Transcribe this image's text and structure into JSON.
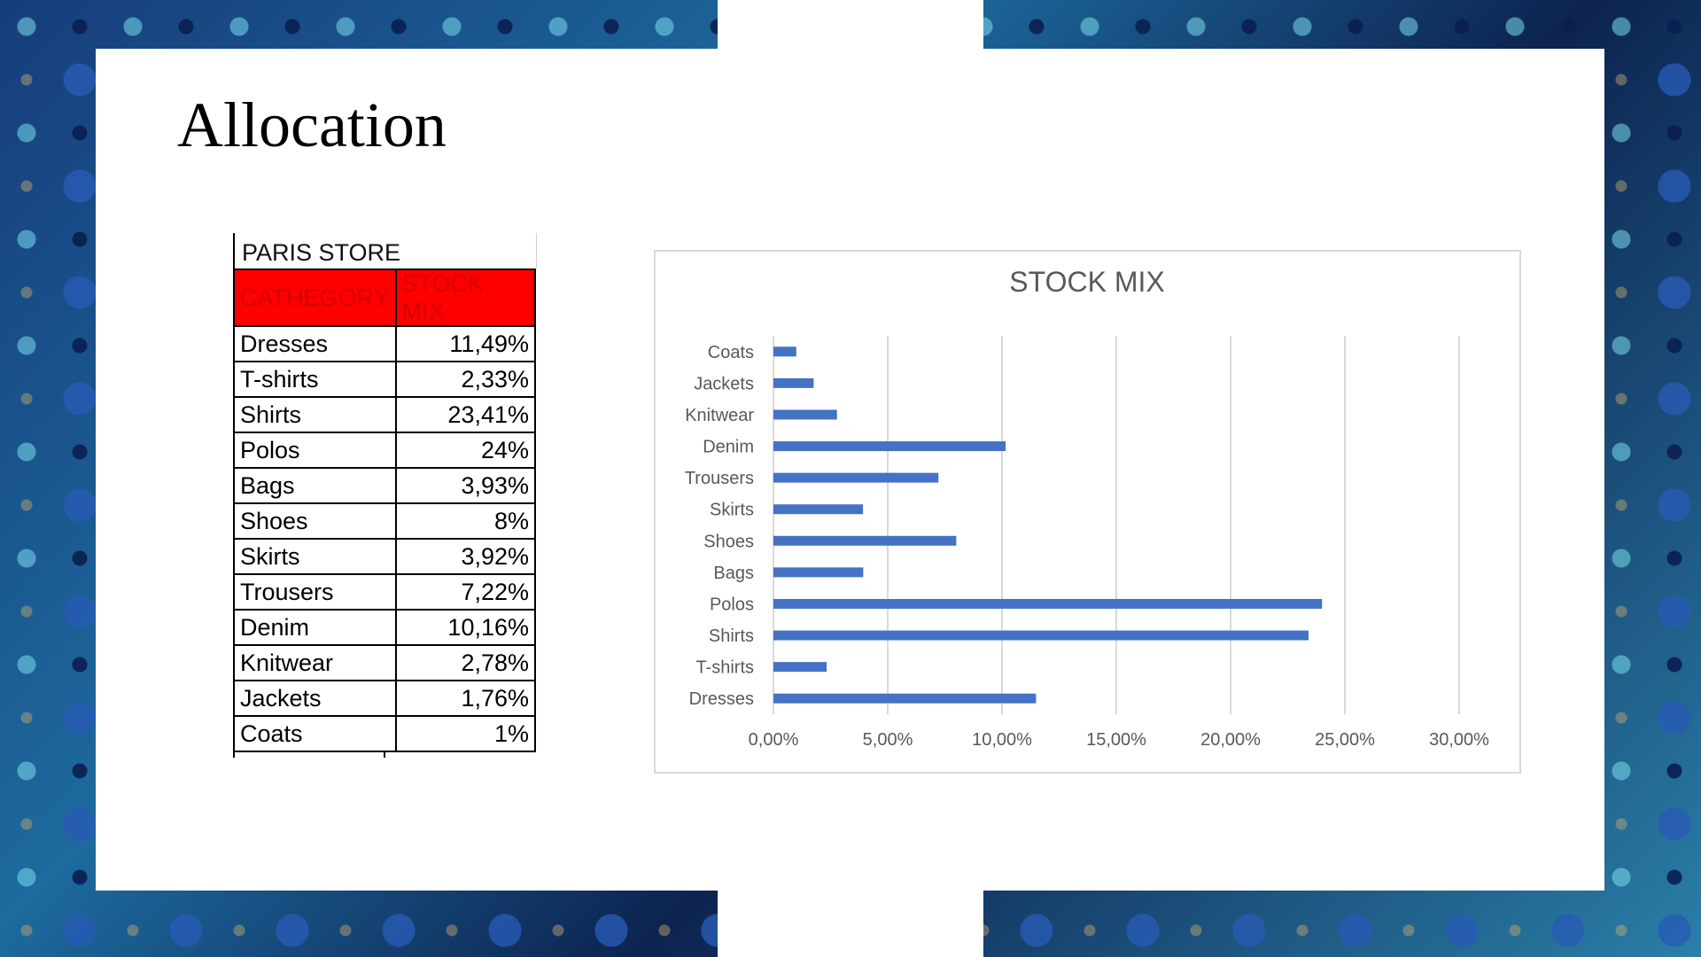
{
  "slide": {
    "title": "Allocation"
  },
  "table": {
    "store_title": "PARIS STORE",
    "headers": [
      "CATHEGORY",
      "STOCK MIX"
    ],
    "rows": [
      {
        "category": "Dresses",
        "value": "11,49%"
      },
      {
        "category": "T-shirts",
        "value": "2,33%"
      },
      {
        "category": "Shirts",
        "value": "23,41%"
      },
      {
        "category": "Polos",
        "value": "24%"
      },
      {
        "category": "Bags",
        "value": "3,93%"
      },
      {
        "category": "Shoes",
        "value": "8%"
      },
      {
        "category": "Skirts",
        "value": "3,92%"
      },
      {
        "category": "Trousers",
        "value": "7,22%"
      },
      {
        "category": "Denim",
        "value": "10,16%"
      },
      {
        "category": "Knitwear",
        "value": "2,78%"
      },
      {
        "category": "Jackets",
        "value": "1,76%"
      },
      {
        "category": "Coats",
        "value": "1%"
      }
    ]
  },
  "chart_data": {
    "type": "bar",
    "orientation": "horizontal",
    "title": "STOCK MIX",
    "categories": [
      "Coats",
      "Jackets",
      "Knitwear",
      "Denim",
      "Trousers",
      "Skirts",
      "Shoes",
      "Bags",
      "Polos",
      "Shirts",
      "T-shirts",
      "Dresses"
    ],
    "values": [
      1.0,
      1.76,
      2.78,
      10.16,
      7.22,
      3.92,
      8.0,
      3.93,
      24.0,
      23.41,
      2.33,
      11.49
    ],
    "xlim": [
      0,
      30
    ],
    "ticks": [
      0,
      5,
      10,
      15,
      20,
      25,
      30
    ],
    "tick_labels": [
      "0,00%",
      "5,00%",
      "10,00%",
      "15,00%",
      "20,00%",
      "25,00%",
      "30,00%"
    ],
    "grid": true,
    "legend": "none",
    "bar_color": "#4472c4",
    "grid_color": "#d9d9d9"
  }
}
